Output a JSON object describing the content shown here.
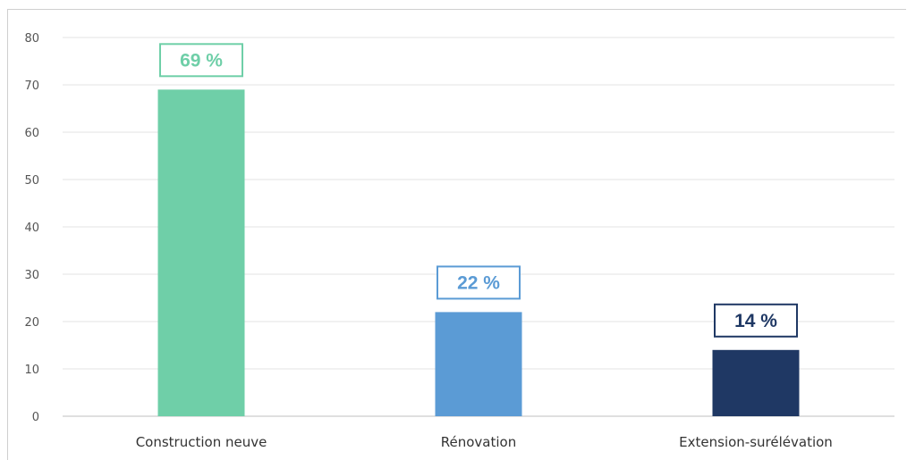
{
  "chart_data": {
    "type": "bar",
    "categories": [
      "Construction neuve",
      "Rénovation",
      "Extension-surélévation"
    ],
    "values": [
      69,
      22,
      14
    ],
    "data_labels": [
      "69 %",
      "22 %",
      "14 %"
    ],
    "colors": [
      "#6fcfa8",
      "#5b9bd5",
      "#1f3864"
    ],
    "ylim": [
      0,
      80
    ],
    "yticks": [
      0,
      10,
      20,
      30,
      40,
      50,
      60,
      70,
      80
    ],
    "title": "",
    "xlabel": "",
    "ylabel": "",
    "grid": true,
    "legend": "none"
  }
}
